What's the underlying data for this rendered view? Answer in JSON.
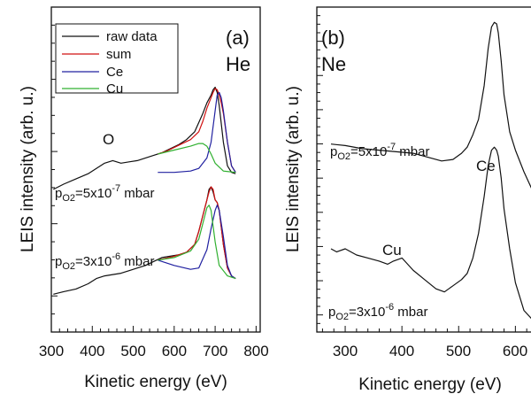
{
  "colors": {
    "raw": "#111111",
    "sum": "#d01010",
    "ce": "#2020a0",
    "cu": "#30b030",
    "axis": "#111111"
  },
  "chart_data": [
    {
      "panel": "(a)",
      "type": "line",
      "gas": "He",
      "xlabel": "Kinetic energy (eV)",
      "ylabel": "LEIS intensity (arb. u.)",
      "xlim": [
        300,
        810
      ],
      "ylim": [
        0,
        1
      ],
      "x_ticks": [
        300,
        400,
        500,
        600,
        700,
        800
      ],
      "y_ticklabels_shown": false,
      "legend": {
        "placement": "top-left",
        "entries": [
          "raw data",
          "sum",
          "Ce",
          "Cu"
        ]
      },
      "annotations": {
        "peak": "O",
        "upper_pressure": {
          "p": "p",
          "sub": "O2",
          "mid": "=5x10",
          "sup": "-7",
          "unit": " mbar"
        },
        "lower_pressure": {
          "p": "p",
          "sub": "O2",
          "mid": "=3x10",
          "sup": "-6",
          "unit": " mbar"
        }
      },
      "series": [
        {
          "name": "raw data",
          "curve": "upper",
          "x": [
            305,
            330,
            360,
            390,
            410,
            430,
            450,
            470,
            490,
            510,
            530,
            550,
            570,
            590,
            610,
            630,
            650,
            670,
            680,
            690,
            695,
            700,
            705,
            710,
            720,
            730,
            740,
            750
          ],
          "values": [
            0.48,
            0.5,
            0.52,
            0.54,
            0.56,
            0.58,
            0.59,
            0.58,
            0.585,
            0.59,
            0.6,
            0.61,
            0.62,
            0.635,
            0.65,
            0.67,
            0.7,
            0.77,
            0.81,
            0.84,
            0.86,
            0.87,
            0.85,
            0.8,
            0.66,
            0.57,
            0.545,
            0.54
          ]
        },
        {
          "name": "sum",
          "curve": "upper",
          "x": [
            560,
            580,
            600,
            620,
            640,
            660,
            670,
            680,
            690,
            695,
            700,
            705,
            710,
            715,
            720,
            730,
            740,
            750
          ],
          "values": [
            0.615,
            0.625,
            0.64,
            0.655,
            0.67,
            0.7,
            0.74,
            0.79,
            0.83,
            0.85,
            0.865,
            0.86,
            0.84,
            0.81,
            0.77,
            0.66,
            0.57,
            0.545
          ]
        },
        {
          "name": "Ce",
          "curve": "upper",
          "x": [
            560,
            600,
            640,
            660,
            680,
            690,
            700,
            705,
            710,
            715,
            720,
            730,
            740,
            750
          ],
          "values": [
            0.545,
            0.545,
            0.55,
            0.56,
            0.6,
            0.66,
            0.78,
            0.84,
            0.85,
            0.83,
            0.78,
            0.66,
            0.57,
            0.545
          ]
        },
        {
          "name": "Cu",
          "curve": "upper",
          "x": [
            560,
            600,
            640,
            660,
            670,
            680,
            690,
            700,
            720,
            750
          ],
          "values": [
            0.615,
            0.63,
            0.645,
            0.655,
            0.655,
            0.645,
            0.615,
            0.58,
            0.55,
            0.545
          ]
        },
        {
          "name": "raw data",
          "curve": "lower",
          "x": [
            305,
            330,
            360,
            390,
            410,
            430,
            450,
            470,
            490,
            510,
            530,
            550,
            570,
            590,
            610,
            630,
            650,
            660,
            670,
            680,
            685,
            690,
            695,
            700,
            705,
            710,
            720,
            730,
            740,
            750
          ],
          "values": [
            0.08,
            0.09,
            0.1,
            0.12,
            0.14,
            0.15,
            0.155,
            0.16,
            0.17,
            0.18,
            0.19,
            0.205,
            0.22,
            0.225,
            0.23,
            0.24,
            0.27,
            0.32,
            0.38,
            0.44,
            0.48,
            0.49,
            0.47,
            0.44,
            0.43,
            0.4,
            0.27,
            0.18,
            0.15,
            0.14
          ]
        },
        {
          "name": "sum",
          "curve": "lower",
          "x": [
            560,
            600,
            630,
            650,
            660,
            670,
            680,
            685,
            690,
            695,
            700,
            705,
            710,
            720,
            730,
            740,
            750
          ],
          "values": [
            0.21,
            0.225,
            0.24,
            0.27,
            0.32,
            0.38,
            0.44,
            0.47,
            0.49,
            0.48,
            0.44,
            0.43,
            0.4,
            0.27,
            0.18,
            0.15,
            0.14
          ]
        },
        {
          "name": "Ce",
          "curve": "lower",
          "x": [
            560,
            600,
            640,
            660,
            680,
            690,
            700,
            705,
            710,
            720,
            730,
            740,
            750
          ],
          "values": [
            0.21,
            0.19,
            0.175,
            0.18,
            0.25,
            0.33,
            0.4,
            0.42,
            0.4,
            0.3,
            0.19,
            0.15,
            0.14
          ]
        },
        {
          "name": "Cu",
          "curve": "lower",
          "x": [
            560,
            600,
            640,
            660,
            670,
            680,
            685,
            690,
            700,
            710,
            730,
            750
          ],
          "values": [
            0.21,
            0.22,
            0.245,
            0.29,
            0.35,
            0.41,
            0.42,
            0.4,
            0.28,
            0.19,
            0.15,
            0.14
          ]
        }
      ]
    },
    {
      "panel": "(b)",
      "type": "line",
      "gas": "Ne",
      "xlabel": "Kinetic energy (eV)",
      "ylabel": "LEIS intensity (arb. u.)",
      "xlim": [
        250,
        640
      ],
      "ylim": [
        0,
        1
      ],
      "x_ticks": [
        300,
        400,
        500,
        600
      ],
      "y_ticklabels_shown": false,
      "annotations": {
        "peak_ce": "Ce",
        "peak_cu": "Cu",
        "upper_pressure": {
          "p": "p",
          "sub": "O2",
          "mid": "=5x10",
          "sup": "-7",
          "unit": " mbar"
        },
        "lower_pressure": {
          "p": "p",
          "sub": "O2",
          "mid": "=3x10",
          "sup": "-6",
          "unit": " mbar"
        }
      },
      "series": [
        {
          "curve": "upper",
          "x": [
            275,
            300,
            330,
            360,
            390,
            420,
            450,
            470,
            490,
            505,
            515,
            525,
            535,
            545,
            552,
            558,
            563,
            567,
            570,
            575,
            580,
            590,
            600,
            615,
            630,
            640
          ],
          "values": [
            0.59,
            0.585,
            0.575,
            0.57,
            0.565,
            0.56,
            0.545,
            0.535,
            0.54,
            0.56,
            0.58,
            0.62,
            0.67,
            0.78,
            0.9,
            0.97,
            0.985,
            0.98,
            0.95,
            0.86,
            0.75,
            0.63,
            0.57,
            0.5,
            0.44,
            0.42
          ]
        },
        {
          "curve": "lower",
          "x": [
            275,
            285,
            300,
            320,
            340,
            360,
            375,
            385,
            400,
            420,
            440,
            460,
            475,
            490,
            505,
            515,
            525,
            535,
            545,
            552,
            558,
            563,
            567,
            570,
            575,
            580,
            590,
            600,
            615,
            630,
            640
          ],
          "values": [
            0.25,
            0.24,
            0.25,
            0.23,
            0.22,
            0.21,
            0.2,
            0.21,
            0.22,
            0.18,
            0.15,
            0.12,
            0.11,
            0.13,
            0.15,
            0.17,
            0.22,
            0.3,
            0.42,
            0.52,
            0.57,
            0.58,
            0.57,
            0.55,
            0.48,
            0.38,
            0.25,
            0.14,
            0.05,
            0.02,
            0.01
          ]
        }
      ]
    }
  ]
}
